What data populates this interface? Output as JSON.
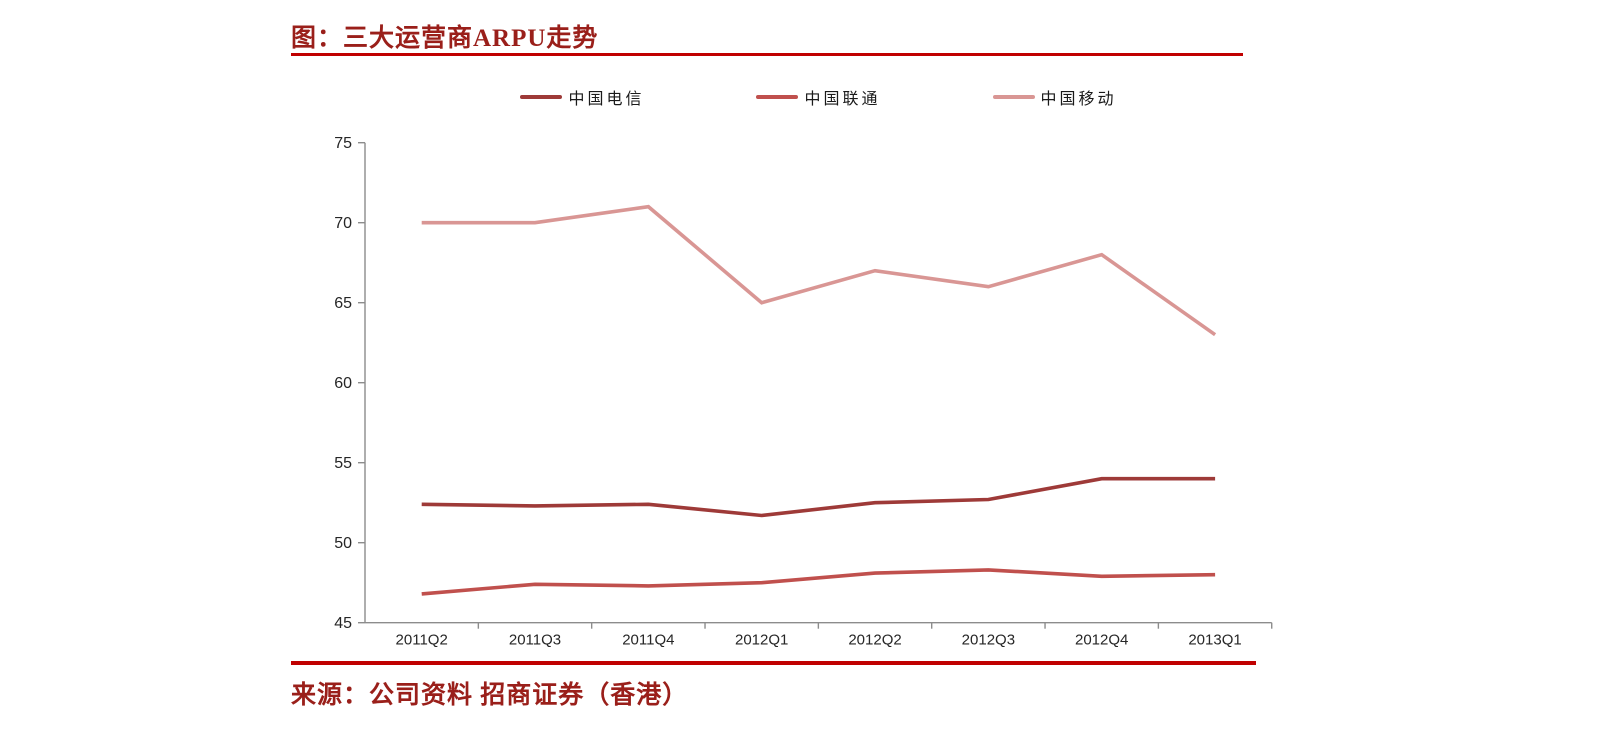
{
  "page": {
    "title_label": "图：三大运营商ARPU走势",
    "source_label": "来源：公司资料 招商证券（香港）"
  },
  "colors": {
    "title_red": "#9a1f1a",
    "rule_red": "#c00000",
    "axis_gray": "#8c8c8c",
    "tick_text": "#262626"
  },
  "chart_data": {
    "type": "line",
    "title": "图：三大运营商ARPU走势",
    "source": "来源：公司资料 招商证券（香港）",
    "categories": [
      "2011Q2",
      "2011Q3",
      "2011Q4",
      "2012Q1",
      "2012Q2",
      "2012Q3",
      "2012Q4",
      "2013Q1"
    ],
    "series": [
      {
        "name": "中国电信",
        "color": "#9e3a38",
        "values": [
          52.4,
          52.3,
          52.4,
          51.7,
          52.5,
          52.7,
          54.0,
          54.0
        ]
      },
      {
        "name": "中国联通",
        "color": "#c0504d",
        "values": [
          46.8,
          47.4,
          47.3,
          47.5,
          48.1,
          48.3,
          47.9,
          48.0
        ]
      },
      {
        "name": "中国移动",
        "color": "#d99694",
        "values": [
          70.0,
          70.0,
          71.0,
          65.0,
          67.0,
          66.0,
          68.0,
          63.0
        ]
      }
    ],
    "xlabel": "",
    "ylabel": "",
    "ylim": [
      45,
      75
    ],
    "ytick_step": 5,
    "grid": false,
    "legend_position": "top"
  }
}
